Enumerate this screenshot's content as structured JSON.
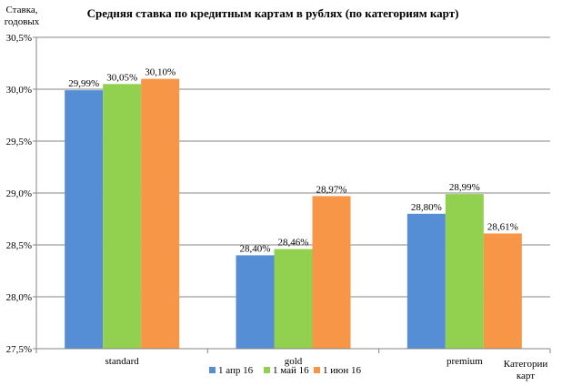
{
  "chart_data": {
    "type": "bar",
    "title": "Средняя ставка по кредитным картам в рублях (по категориям карт)",
    "ylabel": [
      "Ставка,",
      "годовых"
    ],
    "xlabel": [
      "Категории",
      "карт"
    ],
    "categories": [
      "standard",
      "gold",
      "premium"
    ],
    "series": [
      {
        "name": "1 апр 16",
        "color": "#558ED5",
        "values": [
          29.99,
          28.4,
          28.8
        ],
        "labels": [
          "29,99%",
          "28,40%",
          "28,80%"
        ]
      },
      {
        "name": "1 май 16",
        "color": "#92D050",
        "values": [
          30.05,
          28.46,
          28.99
        ],
        "labels": [
          "30,05%",
          "28,46%",
          "28,99%"
        ]
      },
      {
        "name": "1 июн 16",
        "color": "#F79646",
        "values": [
          30.1,
          28.97,
          28.61
        ],
        "labels": [
          "30,10%",
          "28,97%",
          "28,61%"
        ]
      }
    ],
    "ylim": [
      27.5,
      30.5
    ],
    "yticks": [
      27.5,
      28.0,
      28.5,
      29.0,
      29.5,
      30.0,
      30.5
    ],
    "ytick_labels": [
      "27,5%",
      "28,0%",
      "28,5%",
      "29,0%",
      "29,5%",
      "30,0%",
      "30,5%"
    ],
    "grid": true,
    "legend_position": "bottom"
  }
}
